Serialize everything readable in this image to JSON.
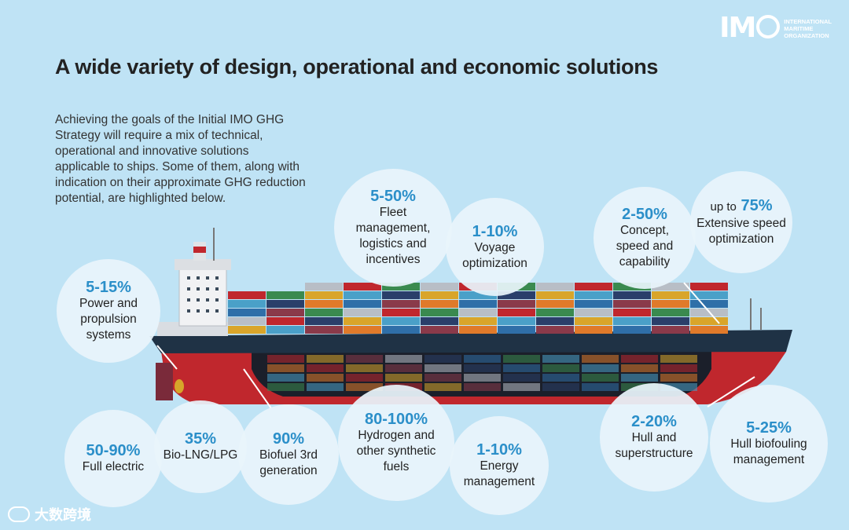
{
  "logo": {
    "mark": "IM",
    "org_lines": [
      "INTERNATIONAL",
      "MARITIME",
      "ORGANIZATION"
    ]
  },
  "title": "A wide variety of design, operational and economic solutions",
  "intro": "Achieving the goals of the Initial IMO GHG Strategy will require a mix of technical, operational and innovative solutions applicable to ships. Some of them, along with indication on their approximate GHG reduction potential, are highlighted below.",
  "solutions": [
    {
      "prefix": "",
      "value": "5-50%",
      "label": "Fleet management, logistics and incentives"
    },
    {
      "prefix": "",
      "value": "1-10%",
      "label": "Voyage optimization"
    },
    {
      "prefix": "",
      "value": "2-50%",
      "label": "Concept, speed and capability"
    },
    {
      "prefix": "up to",
      "value": "75%",
      "label": "Extensive speed optimization"
    },
    {
      "prefix": "",
      "value": "5-15%",
      "label": "Power and propulsion systems"
    },
    {
      "prefix": "",
      "value": "50-90%",
      "label": "Full electric"
    },
    {
      "prefix": "",
      "value": "35%",
      "label": "Bio-LNG/LPG"
    },
    {
      "prefix": "",
      "value": "90%",
      "label": "Biofuel 3rd generation"
    },
    {
      "prefix": "",
      "value": "80-100%",
      "label": "Hydrogen and other synthetic fuels"
    },
    {
      "prefix": "",
      "value": "1-10%",
      "label": "Energy management"
    },
    {
      "prefix": "",
      "value": "2-20%",
      "label": "Hull and superstructure"
    },
    {
      "prefix": "",
      "value": "5-25%",
      "label": "Hull biofouling management"
    }
  ],
  "watermark": "大数跨境",
  "colors": {
    "background": "#bfe3f5",
    "accent_value": "#2b8fc9",
    "hull_red": "#c0272d",
    "hull_dark": "#1f3245"
  }
}
